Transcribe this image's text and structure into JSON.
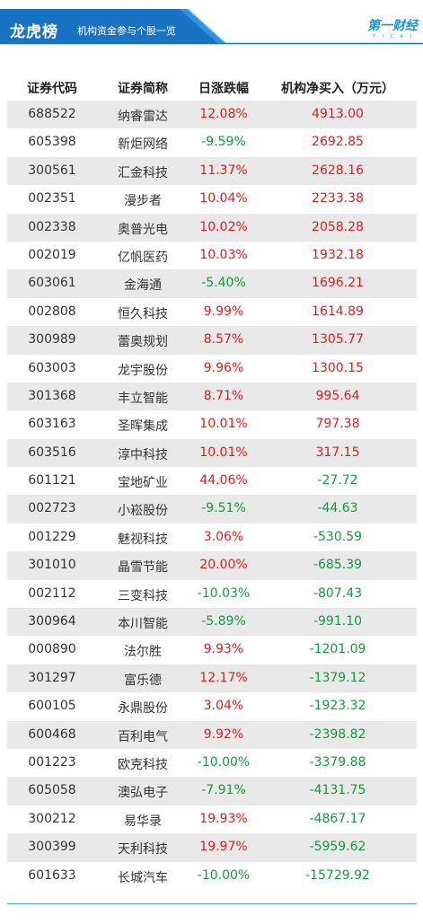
{
  "header": {
    "title": "龙虎榜",
    "subtitle": "机构资金参与个股一览",
    "logo_text": "第一财经",
    "logo_sub": "Y I C A I",
    "bar_color": "#1a72c2",
    "accent_color": "#3aa0e8"
  },
  "table": {
    "columns": [
      "证券代码",
      "证券简称",
      "日涨跌幅",
      "机构净买入（万元）"
    ],
    "rows": [
      {
        "code": "688522",
        "name": "纳睿雷达",
        "change": "12.08%",
        "net": "4913.00",
        "change_dir": "up",
        "net_dir": "up"
      },
      {
        "code": "605398",
        "name": "新炬网络",
        "change": "-9.59%",
        "net": "2692.85",
        "change_dir": "down",
        "net_dir": "up"
      },
      {
        "code": "300561",
        "name": "汇金科技",
        "change": "11.37%",
        "net": "2628.16",
        "change_dir": "up",
        "net_dir": "up"
      },
      {
        "code": "002351",
        "name": "漫步者",
        "change": "10.04%",
        "net": "2233.38",
        "change_dir": "up",
        "net_dir": "up"
      },
      {
        "code": "002338",
        "name": "奥普光电",
        "change": "10.02%",
        "net": "2058.28",
        "change_dir": "up",
        "net_dir": "up"
      },
      {
        "code": "002019",
        "name": "亿帆医药",
        "change": "10.03%",
        "net": "1932.18",
        "change_dir": "up",
        "net_dir": "up"
      },
      {
        "code": "603061",
        "name": "金海通",
        "change": "-5.40%",
        "net": "1696.21",
        "change_dir": "down",
        "net_dir": "up"
      },
      {
        "code": "002808",
        "name": "恒久科技",
        "change": "9.99%",
        "net": "1614.89",
        "change_dir": "up",
        "net_dir": "up"
      },
      {
        "code": "300989",
        "name": "蕾奥规划",
        "change": "8.57%",
        "net": "1305.77",
        "change_dir": "up",
        "net_dir": "up"
      },
      {
        "code": "603003",
        "name": "龙宇股份",
        "change": "9.96%",
        "net": "1300.15",
        "change_dir": "up",
        "net_dir": "up"
      },
      {
        "code": "301368",
        "name": "丰立智能",
        "change": "8.71%",
        "net": "995.64",
        "change_dir": "up",
        "net_dir": "up"
      },
      {
        "code": "603163",
        "name": "圣晖集成",
        "change": "10.01%",
        "net": "797.38",
        "change_dir": "up",
        "net_dir": "up"
      },
      {
        "code": "603516",
        "name": "淳中科技",
        "change": "10.01%",
        "net": "317.15",
        "change_dir": "up",
        "net_dir": "up"
      },
      {
        "code": "601121",
        "name": "宝地矿业",
        "change": "44.06%",
        "net": "-27.72",
        "change_dir": "up",
        "net_dir": "down"
      },
      {
        "code": "002723",
        "name": "小崧股份",
        "change": "-9.51%",
        "net": "-44.63",
        "change_dir": "down",
        "net_dir": "down"
      },
      {
        "code": "001229",
        "name": "魅视科技",
        "change": "3.06%",
        "net": "-530.59",
        "change_dir": "up",
        "net_dir": "down"
      },
      {
        "code": "301010",
        "name": "晶雪节能",
        "change": "20.00%",
        "net": "-685.39",
        "change_dir": "up",
        "net_dir": "down"
      },
      {
        "code": "002112",
        "name": "三变科技",
        "change": "-10.03%",
        "net": "-807.43",
        "change_dir": "down",
        "net_dir": "down"
      },
      {
        "code": "300964",
        "name": "本川智能",
        "change": "-5.89%",
        "net": "-991.10",
        "change_dir": "down",
        "net_dir": "down"
      },
      {
        "code": "000890",
        "name": "法尔胜",
        "change": "9.93%",
        "net": "-1201.09",
        "change_dir": "up",
        "net_dir": "down"
      },
      {
        "code": "301297",
        "name": "富乐德",
        "change": "12.17%",
        "net": "-1379.12",
        "change_dir": "up",
        "net_dir": "down"
      },
      {
        "code": "600105",
        "name": "永鼎股份",
        "change": "3.04%",
        "net": "-1923.32",
        "change_dir": "up",
        "net_dir": "down"
      },
      {
        "code": "600468",
        "name": "百利电气",
        "change": "9.92%",
        "net": "-2398.82",
        "change_dir": "up",
        "net_dir": "down"
      },
      {
        "code": "001223",
        "name": "欧克科技",
        "change": "-10.00%",
        "net": "-3379.88",
        "change_dir": "down",
        "net_dir": "down"
      },
      {
        "code": "605058",
        "name": "澳弘电子",
        "change": "-7.91%",
        "net": "-4131.75",
        "change_dir": "down",
        "net_dir": "down"
      },
      {
        "code": "300212",
        "name": "易华录",
        "change": "19.93%",
        "net": "-4867.17",
        "change_dir": "up",
        "net_dir": "down"
      },
      {
        "code": "300399",
        "name": "天利科技",
        "change": "19.97%",
        "net": "-5959.62",
        "change_dir": "up",
        "net_dir": "down"
      },
      {
        "code": "601633",
        "name": "长城汽车",
        "change": "-10.00%",
        "net": "-15729.92",
        "change_dir": "down",
        "net_dir": "down"
      }
    ]
  },
  "colors": {
    "up": "#e02020",
    "down": "#139c3a",
    "stripe": "#e9e9ea"
  }
}
